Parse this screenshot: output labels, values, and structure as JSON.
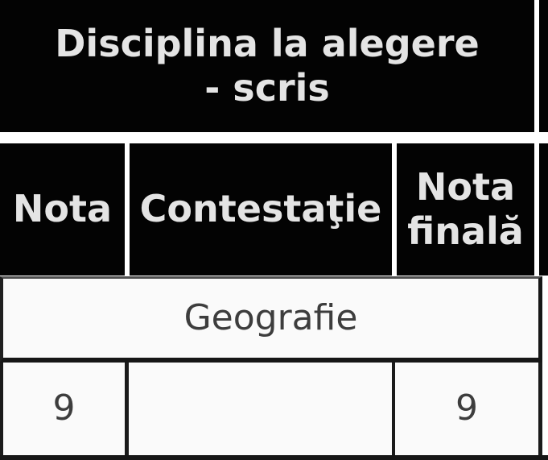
{
  "table": {
    "group_header": "Disciplina la alegere - scris",
    "columns": [
      "Nota",
      "Contestaţie",
      "Nota finală"
    ],
    "subject_row": {
      "subject": "Geografie"
    },
    "score_row": {
      "nota": "9",
      "contestatie": "",
      "nota_finala": "9"
    }
  },
  "colors": {
    "header_bg": "#030303",
    "header_text": "#e4e4e4",
    "cell_bg": "#fafafa",
    "body_text": "#3d3d3d",
    "border": "#1a1a1a",
    "page_bg": "#ffffff"
  }
}
